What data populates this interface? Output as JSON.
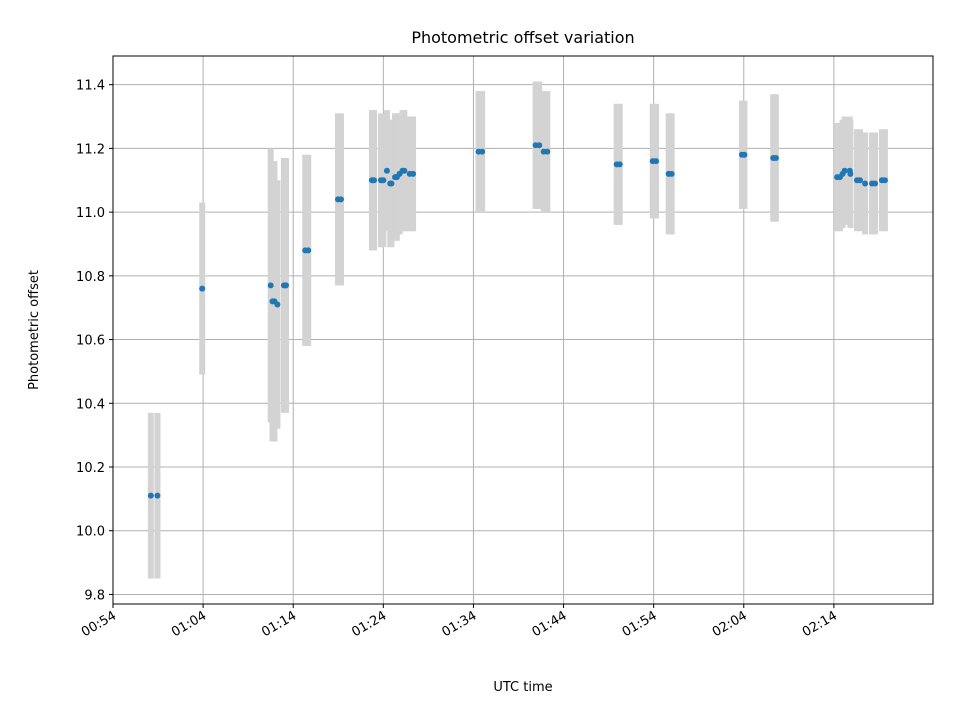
{
  "chart_data": {
    "type": "scatter",
    "title": "Photometric offset variation",
    "xlabel": "UTC time",
    "ylabel": "Photometric offset",
    "ylim": [
      9.77,
      11.49
    ],
    "yticks": [
      9.8,
      10.0,
      10.2,
      10.4,
      10.6,
      10.8,
      11.0,
      11.2,
      11.4
    ],
    "xlim": [
      "00:54",
      "02:25"
    ],
    "xticks": [
      "00:54",
      "01:04",
      "01:14",
      "01:24",
      "01:34",
      "01:44",
      "01:54",
      "02:04",
      "02:14"
    ],
    "grid": true,
    "colors": {
      "points": "#1f77b4",
      "errorbars": "#d3d3d3"
    },
    "series": [
      {
        "x": [
          "00:58:12",
          "00:58:56",
          "01:03:54",
          "01:11:30",
          "01:11:42",
          "01:11:55",
          "01:12:15",
          "01:12:58",
          "01:13:12",
          "01:15:20",
          "01:15:40",
          "01:18:58",
          "01:19:18",
          "01:22:44",
          "01:22:58",
          "01:23:44",
          "01:24:00",
          "01:24:24",
          "01:24:46",
          "01:24:54",
          "01:25:18",
          "01:25:30",
          "01:25:48",
          "01:26:08",
          "01:26:20",
          "01:26:56",
          "01:27:18",
          "01:34:34",
          "01:34:58",
          "01:40:54",
          "01:41:18",
          "01:41:48",
          "01:42:12",
          "01:49:54",
          "01:50:14",
          "01:53:54",
          "01:54:16",
          "01:55:40",
          "01:56:00",
          "02:03:48",
          "02:04:04",
          "02:07:16",
          "02:07:34",
          "02:14:22",
          "02:14:40",
          "02:14:58",
          "02:15:12",
          "02:15:46",
          "02:15:50",
          "02:16:34",
          "02:16:54",
          "02:17:28",
          "02:18:14",
          "02:18:34",
          "02:19:20",
          "02:19:40"
        ],
        "y": [
          10.11,
          10.11,
          10.76,
          10.77,
          10.72,
          10.72,
          10.71,
          10.77,
          10.77,
          10.88,
          10.88,
          11.04,
          11.04,
          11.1,
          11.1,
          11.1,
          11.1,
          11.13,
          11.09,
          11.09,
          11.11,
          11.11,
          11.12,
          11.13,
          11.13,
          11.12,
          11.12,
          11.19,
          11.19,
          11.21,
          11.21,
          11.19,
          11.19,
          11.15,
          11.15,
          11.16,
          11.16,
          11.12,
          11.12,
          11.18,
          11.18,
          11.17,
          11.17,
          11.11,
          11.11,
          11.12,
          11.13,
          11.13,
          11.12,
          11.1,
          11.1,
          11.09,
          11.09,
          11.09,
          11.1,
          11.1
        ],
        "yerr": [
          0.26,
          0.26,
          0.27,
          0.43,
          0.44,
          0.44,
          0.39,
          0.4,
          0.4,
          0.3,
          0.3,
          0.27,
          0.27,
          0.22,
          0.22,
          0.21,
          0.21,
          0.19,
          0.2,
          0.2,
          0.2,
          0.2,
          0.19,
          0.19,
          0.19,
          0.18,
          0.18,
          0.19,
          0.19,
          0.2,
          0.2,
          0.19,
          0.19,
          0.19,
          0.19,
          0.18,
          0.18,
          0.19,
          0.19,
          0.17,
          0.17,
          0.2,
          0.2,
          0.17,
          0.17,
          0.17,
          0.17,
          0.17,
          0.17,
          0.16,
          0.16,
          0.16,
          0.16,
          0.16,
          0.16,
          0.16
        ]
      }
    ]
  }
}
